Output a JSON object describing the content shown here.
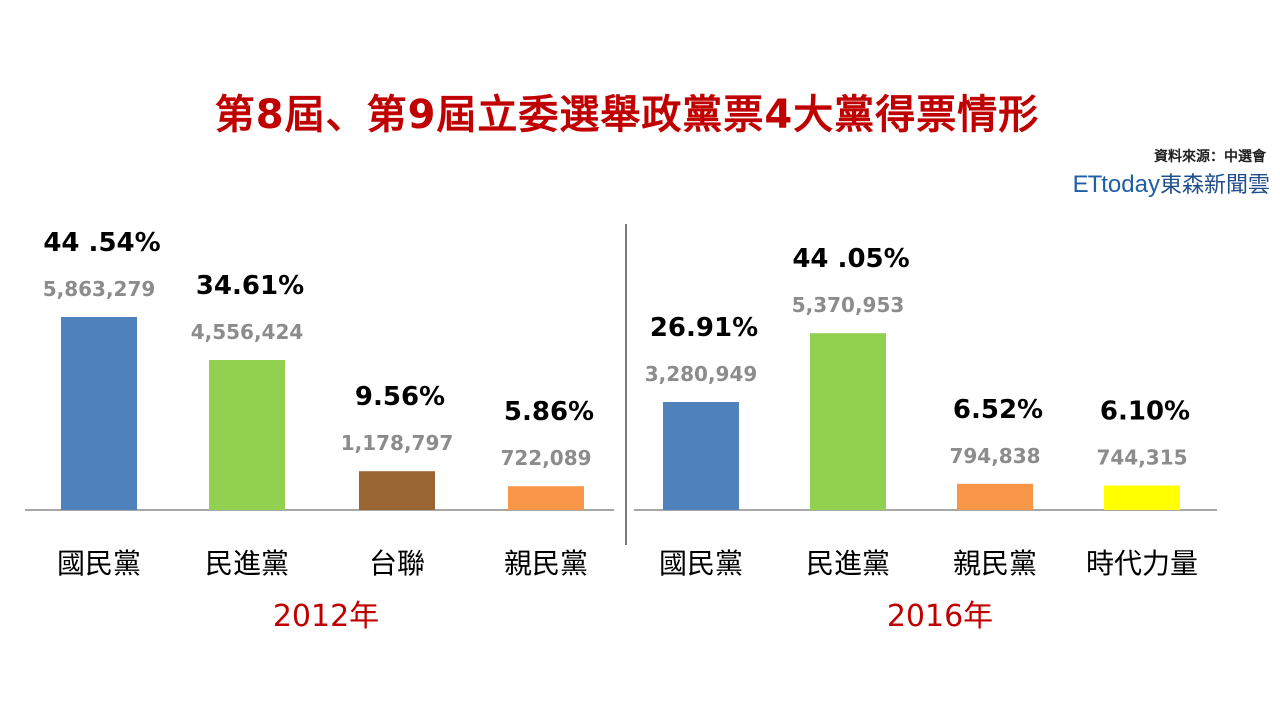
{
  "title": "第8屆、第9屆立委選舉政黨票4大黨得票情形",
  "source": "資料來源：中選會",
  "brand": {
    "et": "ET",
    "today": "today",
    "cn": "東森新聞雲"
  },
  "colors": {
    "kmt": "#4f81bd",
    "dpp": "#92d050",
    "tsu": "#996633",
    "pfp": "#f79646",
    "npp": "#ffff00",
    "title": "#c00000"
  },
  "chart_data": [
    {
      "type": "bar",
      "year_label": "2012年",
      "categories": [
        "國民黨",
        "民進黨",
        "台聯",
        "親民黨"
      ],
      "percent_labels": [
        "44 .54%",
        "34.61%",
        "9.56%",
        "5.86%"
      ],
      "values": [
        5863279,
        4556424,
        1178797,
        722089
      ],
      "value_labels": [
        "5,863,279",
        "4,556,424",
        "1,178,797",
        "722,089"
      ],
      "colors": [
        "#4f81bd",
        "#92d050",
        "#996633",
        "#f79646"
      ]
    },
    {
      "type": "bar",
      "year_label": "2016年",
      "categories": [
        "國民黨",
        "民進黨",
        "親民黨",
        "時代力量"
      ],
      "percent_labels": [
        "26.91%",
        "44 .05%",
        "6.52%",
        "6.10%"
      ],
      "values": [
        3280949,
        5370953,
        794838,
        744315
      ],
      "value_labels": [
        "3,280,949",
        "5,370,953",
        "794,838",
        "744,315"
      ],
      "colors": [
        "#4f81bd",
        "#92d050",
        "#f79646",
        "#ffff00"
      ]
    }
  ]
}
